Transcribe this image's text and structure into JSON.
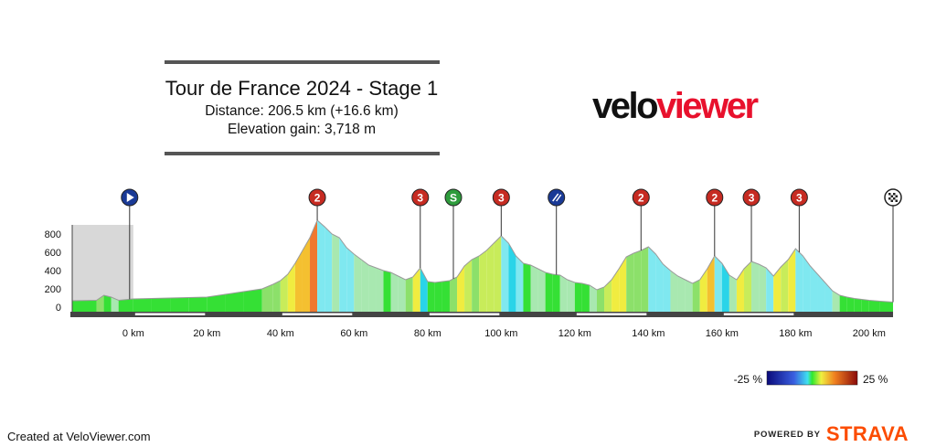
{
  "header": {
    "title": "Tour de France 2024 - Stage 1",
    "distance": "Distance: 206.5 km (+16.6 km)",
    "elevation": "Elevation gain: 3,718 m"
  },
  "logo": {
    "part1": "velo",
    "part2": "viewer",
    "colors": {
      "part1": "#111111",
      "part2": "#e8112d"
    }
  },
  "footer": {
    "credit": "Created at VeloViewer.com",
    "powered": "POWERED BY",
    "brand": "STRAVA"
  },
  "legend": {
    "min_label": "-25 %",
    "max_label": "25 %"
  },
  "chart_data": {
    "type": "area",
    "xlabel": "",
    "ylabel": "",
    "x_ticks": [
      0,
      20,
      40,
      60,
      80,
      100,
      120,
      140,
      160,
      180,
      200
    ],
    "x_tick_labels": [
      "0 km",
      "20 km",
      "40 km",
      "60 km",
      "80 km",
      "100 km",
      "120 km",
      "140 km",
      "160 km",
      "180 km",
      "200 km"
    ],
    "y_ticks": [
      0,
      200,
      400,
      600,
      800
    ],
    "xlim": [
      -16.6,
      206.5
    ],
    "ylim": [
      -50,
      900
    ],
    "neutral_zone": [
      -16.6,
      0
    ],
    "grid": false,
    "profile": [
      [
        -16.6,
        70
      ],
      [
        -10,
        75
      ],
      [
        -8,
        130
      ],
      [
        -6,
        110
      ],
      [
        -4,
        75
      ],
      [
        0,
        90
      ],
      [
        5,
        95
      ],
      [
        10,
        100
      ],
      [
        15,
        105
      ],
      [
        20,
        110
      ],
      [
        25,
        140
      ],
      [
        30,
        170
      ],
      [
        35,
        200
      ],
      [
        38,
        250
      ],
      [
        40,
        290
      ],
      [
        42,
        360
      ],
      [
        44,
        480
      ],
      [
        46,
        620
      ],
      [
        48,
        760
      ],
      [
        50,
        950
      ],
      [
        52,
        880
      ],
      [
        54,
        800
      ],
      [
        56,
        760
      ],
      [
        58,
        650
      ],
      [
        60,
        580
      ],
      [
        62,
        520
      ],
      [
        64,
        460
      ],
      [
        66,
        430
      ],
      [
        68,
        400
      ],
      [
        70,
        380
      ],
      [
        72,
        340
      ],
      [
        74,
        300
      ],
      [
        76,
        330
      ],
      [
        78,
        430
      ],
      [
        80,
        280
      ],
      [
        82,
        270
      ],
      [
        84,
        280
      ],
      [
        86,
        290
      ],
      [
        88,
        330
      ],
      [
        90,
        450
      ],
      [
        92,
        520
      ],
      [
        94,
        560
      ],
      [
        96,
        620
      ],
      [
        98,
        700
      ],
      [
        100,
        780
      ],
      [
        102,
        700
      ],
      [
        104,
        560
      ],
      [
        106,
        480
      ],
      [
        108,
        460
      ],
      [
        110,
        420
      ],
      [
        112,
        380
      ],
      [
        114,
        360
      ],
      [
        116,
        350
      ],
      [
        118,
        300
      ],
      [
        120,
        270
      ],
      [
        122,
        260
      ],
      [
        124,
        240
      ],
      [
        126,
        190
      ],
      [
        128,
        220
      ],
      [
        130,
        300
      ],
      [
        132,
        420
      ],
      [
        134,
        550
      ],
      [
        136,
        590
      ],
      [
        138,
        620
      ],
      [
        140,
        660
      ],
      [
        142,
        580
      ],
      [
        144,
        470
      ],
      [
        146,
        400
      ],
      [
        148,
        340
      ],
      [
        150,
        300
      ],
      [
        152,
        260
      ],
      [
        154,
        300
      ],
      [
        156,
        420
      ],
      [
        158,
        560
      ],
      [
        160,
        480
      ],
      [
        162,
        350
      ],
      [
        164,
        300
      ],
      [
        166,
        420
      ],
      [
        168,
        500
      ],
      [
        170,
        470
      ],
      [
        172,
        430
      ],
      [
        174,
        340
      ],
      [
        176,
        440
      ],
      [
        178,
        520
      ],
      [
        180,
        640
      ],
      [
        182,
        560
      ],
      [
        184,
        450
      ],
      [
        186,
        360
      ],
      [
        188,
        270
      ],
      [
        190,
        180
      ],
      [
        192,
        130
      ],
      [
        194,
        110
      ],
      [
        196,
        95
      ],
      [
        198,
        85
      ],
      [
        200,
        75
      ],
      [
        203,
        65
      ],
      [
        206.5,
        55
      ]
    ],
    "markers": [
      {
        "km": -1,
        "type": "start",
        "label": ""
      },
      {
        "km": 50,
        "type": "climb",
        "label": "2"
      },
      {
        "km": 78,
        "type": "climb",
        "label": "3"
      },
      {
        "km": 87,
        "type": "sprint",
        "label": "S"
      },
      {
        "km": 100,
        "type": "climb",
        "label": "3"
      },
      {
        "km": 115,
        "type": "feed",
        "label": ""
      },
      {
        "km": 138,
        "type": "climb",
        "label": "2"
      },
      {
        "km": 158,
        "type": "climb",
        "label": "2"
      },
      {
        "km": 168,
        "type": "climb",
        "label": "3"
      },
      {
        "km": 181,
        "type": "climb",
        "label": "3"
      },
      {
        "km": 206.5,
        "type": "finish",
        "label": ""
      }
    ],
    "colors": {
      "climb": "#c62b22",
      "start": "#1a3a96",
      "sprint": "#2e9c3c",
      "feed": "#1a3a96",
      "axis": "#444444",
      "neutral": "#d8d8d8"
    }
  }
}
